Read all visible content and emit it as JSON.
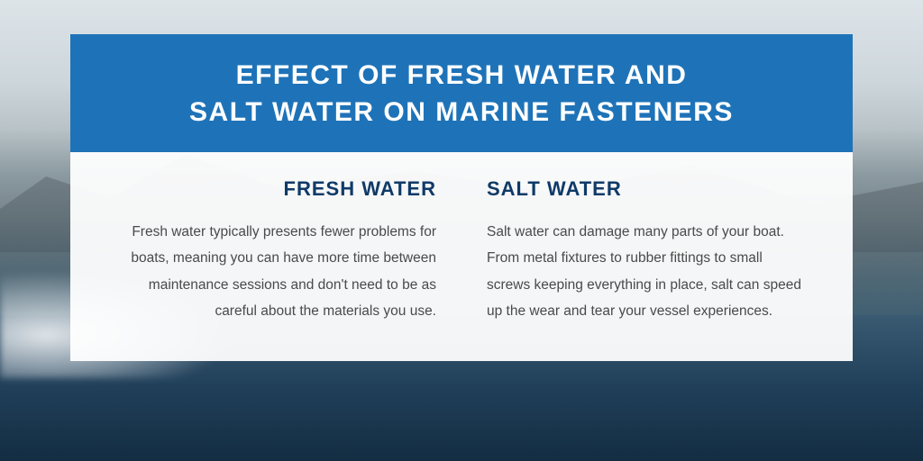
{
  "colors": {
    "header_bg": "#1e73b8",
    "heading_blue": "#0f3a68",
    "body_text": "#4a4a4a",
    "card_bg": "rgba(255,255,255,0.94)",
    "title_text": "#ffffff"
  },
  "header": {
    "title_line1": "EFFECT OF FRESH WATER AND",
    "title_line2": "SALT WATER ON MARINE FASTENERS"
  },
  "left": {
    "heading": "FRESH WATER",
    "body": "Fresh water typically presents fewer problems for boats, meaning you can have more time between maintenance sessions and don't need to be as careful about the materials you use."
  },
  "right": {
    "heading": "SALT WATER",
    "body": "Salt water can damage many parts of your boat. From metal fixtures to rubber fittings to small screws keeping everything in place, salt can speed up the wear and tear your vessel experiences."
  }
}
